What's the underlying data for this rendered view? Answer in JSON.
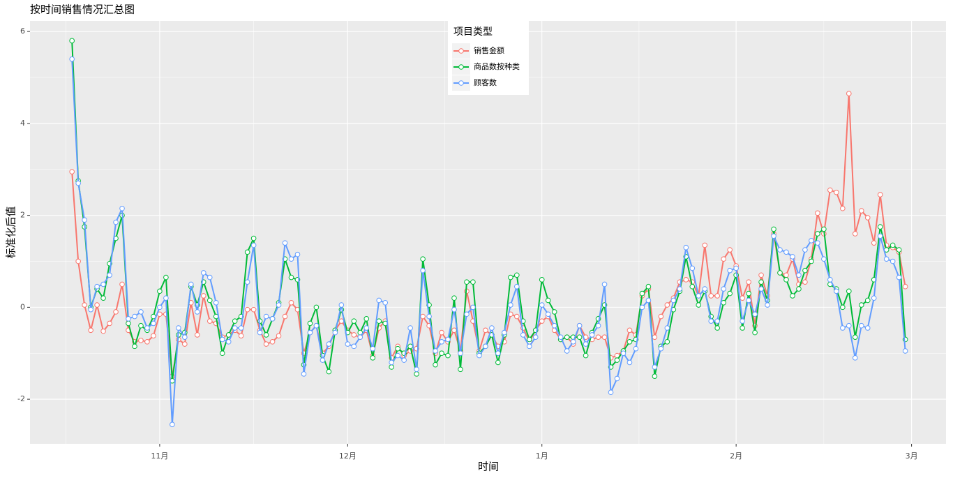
{
  "chart_data": {
    "type": "line",
    "title": "按时间销售情况汇总图",
    "x_label": "时间",
    "y_label": "标准化后值",
    "legend_title": "项目类型",
    "legend_position": "top",
    "grid": true,
    "categories": [
      null,
      null,
      null,
      null,
      null,
      null,
      null,
      null,
      null,
      null,
      null,
      null,
      null,
      null,
      null,
      null,
      null,
      null,
      null,
      null,
      null,
      null,
      null,
      null,
      null,
      null,
      null,
      null,
      null,
      null,
      null,
      null,
      null,
      null,
      null,
      null,
      null,
      null,
      null,
      null,
      null,
      null,
      null,
      null,
      null,
      null,
      null,
      null,
      null,
      null,
      null,
      null,
      null,
      null,
      null,
      null,
      null,
      null,
      null,
      null,
      null,
      null,
      null,
      null,
      null,
      null,
      null,
      null,
      null,
      null,
      null,
      null,
      null,
      null,
      null,
      null,
      null,
      null,
      null,
      null,
      null,
      null,
      null,
      null,
      null,
      null,
      null,
      null,
      null,
      null,
      null,
      null,
      null,
      null,
      null,
      null,
      null,
      null,
      null,
      null,
      null,
      null,
      null,
      null,
      null,
      null,
      null,
      null,
      null,
      null,
      null,
      null,
      null,
      null,
      null,
      null,
      null,
      null,
      null,
      null,
      null,
      null,
      null,
      null,
      null,
      null,
      null,
      null,
      null,
      null,
      null,
      null,
      null,
      null
    ],
    "xlim": [
      -6.7,
      139.5
    ],
    "xticks": [
      {
        "value": 14,
        "label": "11月"
      },
      {
        "value": 44,
        "label": "12月"
      },
      {
        "value": 75,
        "label": "1月"
      },
      {
        "value": 106,
        "label": "2月"
      },
      {
        "value": 134,
        "label": "3月"
      }
    ],
    "ylim": [
      -2.97,
      6.23
    ],
    "yticks": [
      -2,
      0,
      2,
      4,
      6
    ],
    "series": [
      {
        "name": "销售金额",
        "color": "#F8766D",
        "values": [
          2.95,
          1.0,
          0.05,
          -0.5,
          0.05,
          -0.52,
          -0.35,
          -0.1,
          0.5,
          -0.5,
          -0.75,
          -0.72,
          -0.75,
          -0.62,
          -0.15,
          -0.15,
          -1.5,
          -0.7,
          -0.8,
          0.1,
          -0.6,
          0.25,
          -0.3,
          -0.35,
          -0.65,
          -0.6,
          -0.5,
          -0.62,
          -0.05,
          -0.05,
          -0.5,
          -0.8,
          -0.75,
          -0.62,
          -0.2,
          0.1,
          -0.05,
          -1.0,
          -0.55,
          -0.4,
          -1.0,
          -0.85,
          -0.5,
          -0.3,
          -0.5,
          -0.6,
          -0.65,
          -0.5,
          -1.05,
          -0.45,
          -0.3,
          -1.1,
          -0.85,
          -1.05,
          -0.95,
          -0.9,
          -0.2,
          -0.4,
          -1.0,
          -0.55,
          -0.75,
          -0.5,
          -0.95,
          0.35,
          -0.3,
          -0.95,
          -0.5,
          -0.6,
          -0.85,
          -0.75,
          -0.15,
          -0.2,
          -0.45,
          -0.75,
          -0.5,
          -0.3,
          -0.2,
          -0.5,
          -0.7,
          -0.65,
          -0.8,
          -0.4,
          -0.65,
          -0.7,
          -0.65,
          -0.65,
          -1.1,
          -1.05,
          -0.95,
          -0.5,
          -0.6,
          0.25,
          0.4,
          -0.65,
          -0.2,
          0.05,
          0.2,
          0.55,
          0.6,
          0.55,
          0.25,
          1.35,
          0.25,
          0.25,
          1.05,
          1.25,
          0.9,
          0.2,
          0.55,
          -0.4,
          0.7,
          0.25,
          1.6,
          0.75,
          0.7,
          1.05,
          0.5,
          0.55,
          1.05,
          2.05,
          1.6,
          2.55,
          2.5,
          2.15,
          4.65,
          1.6,
          2.1,
          1.95,
          1.4,
          2.45,
          1.35,
          1.3,
          1.2,
          0.45
        ]
      },
      {
        "name": "商品数按种类",
        "color": "#00BA38",
        "values": [
          5.8,
          2.75,
          1.75,
          0.0,
          0.4,
          0.2,
          0.95,
          1.5,
          2.0,
          -0.35,
          -0.85,
          -0.4,
          -0.5,
          -0.2,
          0.35,
          0.65,
          -1.6,
          -0.6,
          -0.55,
          0.45,
          0.05,
          0.55,
          0.15,
          -0.2,
          -1.0,
          -0.6,
          -0.3,
          -0.2,
          1.2,
          1.5,
          -0.3,
          -0.6,
          -0.25,
          0.1,
          1.05,
          0.65,
          0.6,
          -1.25,
          -0.35,
          0.0,
          -1.05,
          -1.4,
          -0.5,
          -0.05,
          -0.55,
          -0.3,
          -0.55,
          -0.25,
          -1.1,
          -0.3,
          -0.35,
          -1.3,
          -0.9,
          -1.0,
          -0.85,
          -1.45,
          1.05,
          0.05,
          -1.25,
          -1.0,
          -1.05,
          0.2,
          -1.35,
          0.55,
          0.55,
          -1.0,
          -0.85,
          -0.6,
          -1.2,
          -0.6,
          0.65,
          0.7,
          -0.3,
          -0.7,
          -0.5,
          0.6,
          0.15,
          -0.1,
          -0.7,
          -0.65,
          -0.65,
          -0.65,
          -1.05,
          -0.55,
          -0.25,
          0.05,
          -1.3,
          -1.15,
          -0.95,
          -0.75,
          -0.7,
          0.3,
          0.45,
          -1.5,
          -0.85,
          -0.75,
          -0.05,
          0.35,
          1.1,
          0.45,
          0.05,
          0.35,
          -0.2,
          -0.45,
          0.1,
          0.3,
          0.7,
          -0.45,
          0.3,
          -0.55,
          0.55,
          0.15,
          1.7,
          0.75,
          0.6,
          0.25,
          0.4,
          0.8,
          1.0,
          1.6,
          1.7,
          0.5,
          0.4,
          0.0,
          0.35,
          -0.65,
          0.05,
          0.15,
          0.6,
          1.75,
          1.25,
          1.35,
          1.25,
          -0.7
        ]
      },
      {
        "name": "顾客数",
        "color": "#619CFF",
        "values": [
          5.4,
          2.7,
          1.9,
          -0.05,
          0.45,
          0.5,
          0.7,
          1.85,
          2.15,
          -0.25,
          -0.2,
          -0.1,
          -0.45,
          -0.35,
          0.0,
          0.2,
          -2.55,
          -0.45,
          -0.65,
          0.5,
          -0.1,
          0.75,
          0.65,
          0.1,
          -0.7,
          -0.75,
          -0.45,
          -0.45,
          0.55,
          1.35,
          -0.55,
          -0.2,
          -0.25,
          0.05,
          1.4,
          1.05,
          1.15,
          -1.45,
          -0.55,
          -0.4,
          -1.15,
          -0.8,
          -0.55,
          0.05,
          -0.8,
          -0.85,
          -0.65,
          -0.45,
          -0.9,
          0.15,
          0.1,
          -1.2,
          -1.05,
          -1.15,
          -0.45,
          -1.35,
          0.8,
          -0.2,
          -0.95,
          -0.75,
          -0.7,
          -0.05,
          -1.0,
          -0.15,
          0.0,
          -1.05,
          -0.85,
          -0.45,
          -1.0,
          -0.55,
          0.05,
          0.45,
          -0.6,
          -0.85,
          -0.65,
          0.05,
          -0.15,
          -0.4,
          -0.65,
          -0.95,
          -0.75,
          -0.4,
          -0.8,
          -0.6,
          -0.4,
          0.5,
          -1.85,
          -1.55,
          -1.0,
          -1.2,
          -0.9,
          0.0,
          0.15,
          -1.3,
          -0.9,
          -0.45,
          0.15,
          0.4,
          1.3,
          0.85,
          0.25,
          0.4,
          -0.3,
          -0.3,
          0.4,
          0.8,
          0.85,
          -0.3,
          0.15,
          -0.15,
          0.4,
          0.05,
          1.55,
          1.25,
          1.2,
          1.1,
          0.7,
          1.25,
          1.45,
          1.4,
          1.05,
          0.6,
          0.35,
          -0.45,
          -0.4,
          -1.1,
          -0.4,
          -0.45,
          0.2,
          1.55,
          1.05,
          1.0,
          0.65,
          -0.95
        ]
      }
    ]
  }
}
